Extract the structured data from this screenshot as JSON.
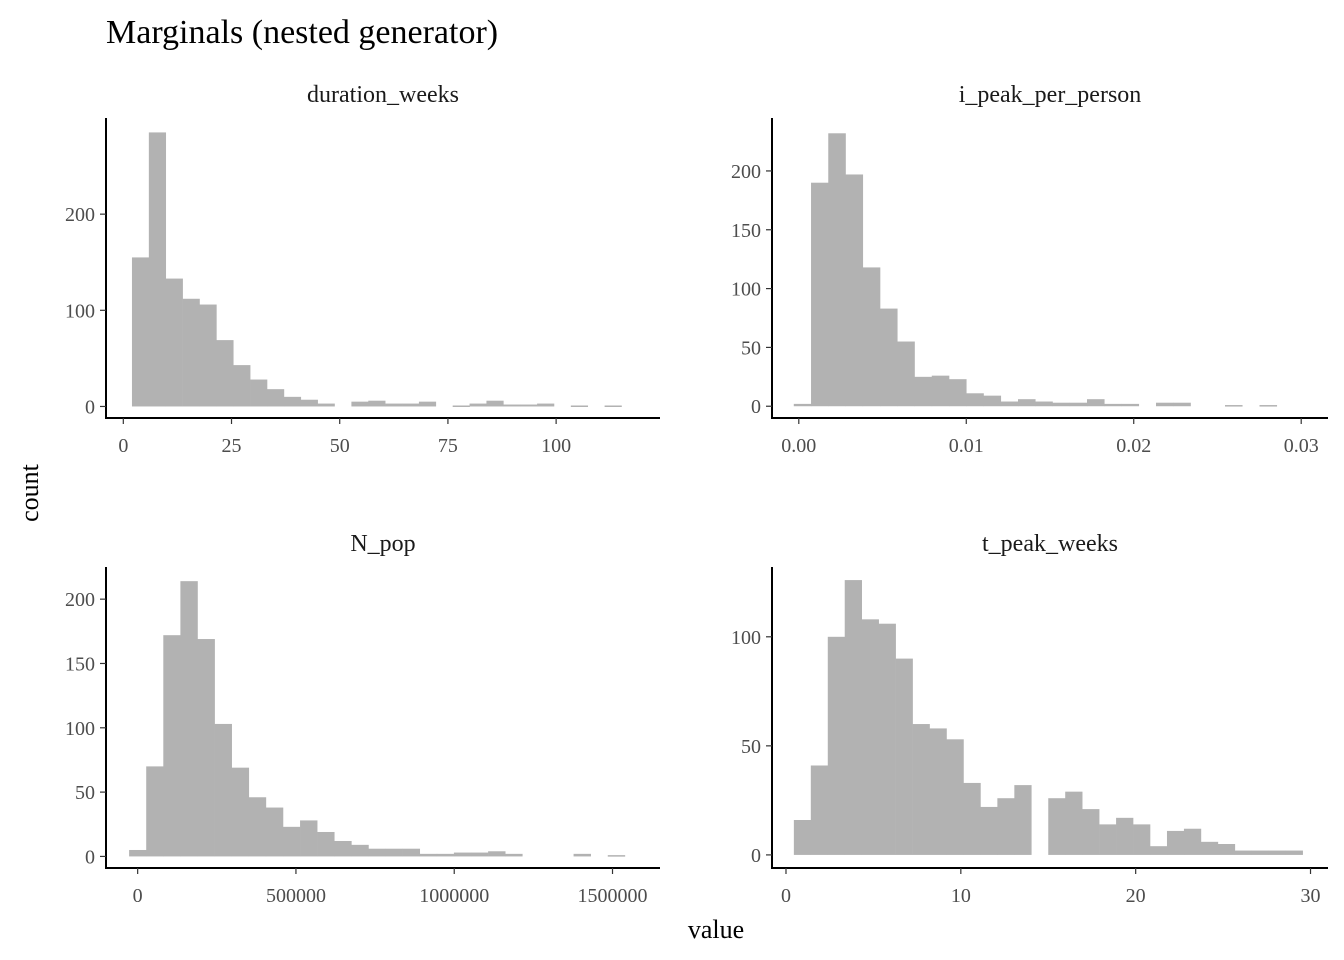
{
  "title": "Marginals (nested generator)",
  "xlabel": "value",
  "ylabel": "count",
  "colors": {
    "bar": "#b2b2b2",
    "axis": "#000000",
    "tick_text": "#4d4d4d"
  },
  "chart_data": [
    {
      "type": "bar",
      "panel": "duration_weeks",
      "title": "duration_weeks",
      "bin_start": 2.0,
      "bin_width": 3.9,
      "counts": [
        155,
        285,
        133,
        112,
        106,
        69,
        43,
        28,
        18,
        10,
        7,
        3,
        0,
        5,
        6,
        3,
        3,
        5,
        0,
        1,
        3,
        6,
        2,
        2,
        3,
        0,
        1,
        0,
        1,
        0
      ],
      "xlim": [
        -4,
        124
      ],
      "ylim": [
        -12,
        300
      ],
      "xticks": [
        0,
        25,
        50,
        75,
        100
      ],
      "xtick_labels": [
        "0",
        "25",
        "50",
        "75",
        "100"
      ],
      "yticks": [
        0,
        100,
        200
      ],
      "ytick_labels": [
        "0",
        "100",
        "200"
      ]
    },
    {
      "type": "bar",
      "panel": "i_peak_per_person",
      "title": "i_peak_per_person",
      "bin_start": -0.0003,
      "bin_width": 0.00103,
      "counts": [
        2,
        190,
        232,
        197,
        118,
        83,
        55,
        25,
        26,
        23,
        11,
        9,
        4,
        6,
        4,
        3,
        3,
        6,
        2,
        2,
        0,
        3,
        3,
        0,
        0,
        1,
        0,
        1,
        0
      ],
      "xlim": [
        -0.0016,
        0.0316
      ],
      "ylim": [
        -10,
        245
      ],
      "xticks": [
        0.0,
        0.01,
        0.02,
        0.03
      ],
      "xtick_labels": [
        "0.00",
        "0.01",
        "0.02",
        "0.03"
      ],
      "yticks": [
        0,
        50,
        100,
        150,
        200
      ],
      "ytick_labels": [
        "0",
        "50",
        "100",
        "150",
        "200"
      ]
    },
    {
      "type": "bar",
      "panel": "N_pop",
      "title": "N_pop",
      "bin_start": -27000,
      "bin_width": 54000,
      "counts": [
        5,
        70,
        172,
        214,
        169,
        103,
        69,
        46,
        38,
        23,
        28,
        19,
        12,
        9,
        6,
        6,
        6,
        2,
        2,
        3,
        3,
        4,
        2,
        0,
        0,
        0,
        2,
        0,
        1,
        0
      ],
      "xlim": [
        -100000,
        1650000
      ],
      "ylim": [
        -9,
        225
      ],
      "xticks": [
        0,
        500000,
        1000000,
        1500000
      ],
      "xtick_labels": [
        "0",
        "500000",
        "1000000",
        "1500000"
      ],
      "yticks": [
        0,
        50,
        100,
        150,
        200
      ],
      "ytick_labels": [
        "0",
        "50",
        "100",
        "150",
        "200"
      ]
    },
    {
      "type": "bar",
      "panel": "t_peak_weeks",
      "title": "t_peak_weeks",
      "bin_start": 0.45,
      "bin_width": 0.97,
      "counts": [
        16,
        41,
        100,
        126,
        108,
        106,
        90,
        60,
        58,
        53,
        33,
        22,
        26,
        32,
        0,
        26,
        29,
        21,
        14,
        17,
        14,
        4,
        11,
        12,
        6,
        5,
        2,
        2,
        2,
        2
      ],
      "xlim": [
        -0.8,
        31.0
      ],
      "ylim": [
        -6,
        132
      ],
      "xticks": [
        0,
        10,
        20,
        30
      ],
      "xtick_labels": [
        "0",
        "10",
        "20",
        "30"
      ],
      "yticks": [
        0,
        50,
        100
      ],
      "ytick_labels": [
        "0",
        "50",
        "100"
      ]
    }
  ]
}
